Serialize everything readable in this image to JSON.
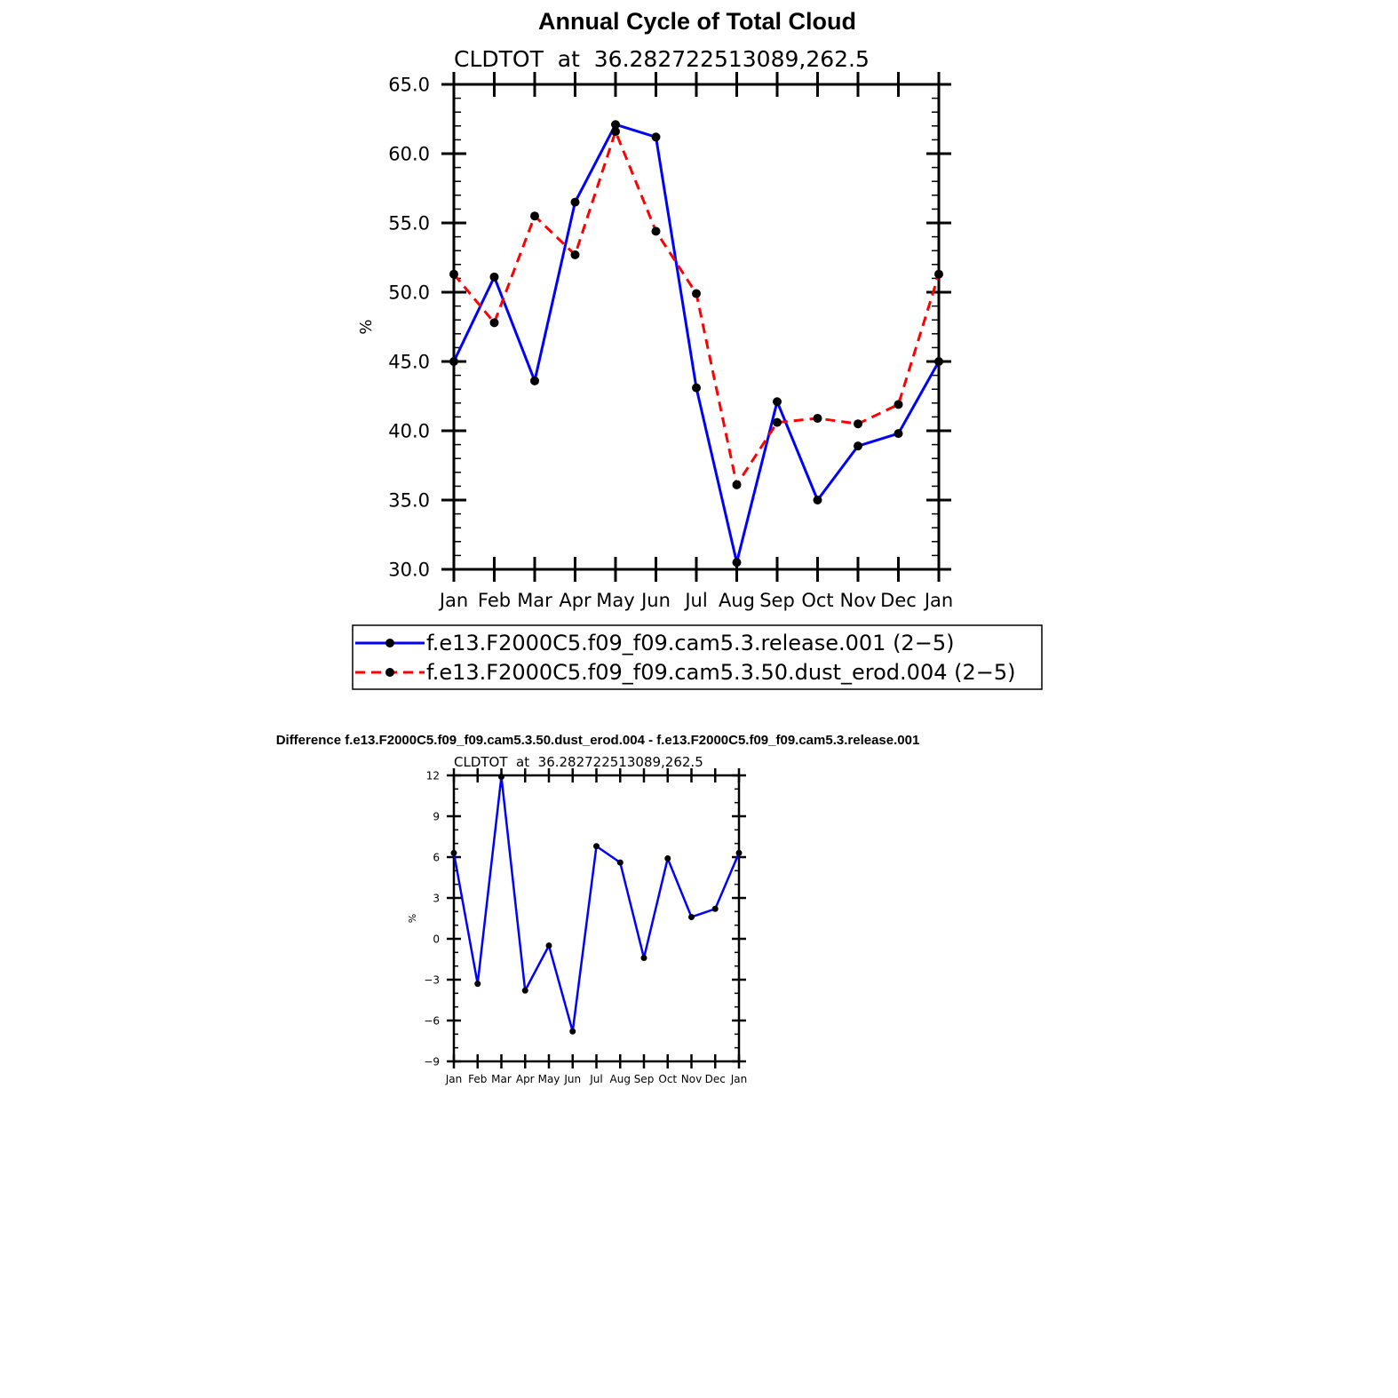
{
  "chart_data": [
    {
      "type": "line",
      "title": "Annual Cycle of Total Cloud",
      "subtitle": "CLDTOT  at  36.282722513089,262.5",
      "xlabel": "",
      "ylabel": "%",
      "categories": [
        "Jan",
        "Feb",
        "Mar",
        "Apr",
        "May",
        "Jun",
        "Jul",
        "Aug",
        "Sep",
        "Oct",
        "Nov",
        "Dec",
        "Jan"
      ],
      "ylim": [
        30,
        65
      ],
      "yticks": [
        "30.0",
        "35.0",
        "40.0",
        "45.0",
        "50.0",
        "55.0",
        "60.0",
        "65.0"
      ],
      "legend_position": "bottom",
      "series": [
        {
          "name": "f.e13.F2000C5.f09_f09.cam5.3.release.001 (2−5)",
          "color": "#0000ff",
          "dash": "solid",
          "values": [
            45.0,
            51.1,
            43.6,
            56.5,
            62.1,
            61.2,
            43.1,
            30.5,
            42.1,
            35.0,
            38.9,
            39.8,
            45.0
          ]
        },
        {
          "name": "f.e13.F2000C5.f09_f09.cam5.3.50.dust_erod.004 (2−5)",
          "color": "#ff0000",
          "dash": "dashed",
          "values": [
            51.3,
            47.8,
            55.5,
            52.7,
            61.6,
            54.4,
            49.9,
            36.1,
            40.6,
            40.9,
            40.5,
            41.9,
            51.3
          ]
        }
      ]
    },
    {
      "type": "line",
      "title": "Difference f.e13.F2000C5.f09_f09.cam5.3.50.dust_erod.004 - f.e13.F2000C5.f09_f09.cam5.3.release.001",
      "subtitle": "CLDTOT  at  36.282722513089,262.5",
      "xlabel": "",
      "ylabel": "%",
      "categories": [
        "Jan",
        "Feb",
        "Mar",
        "Apr",
        "May",
        "Jun",
        "Jul",
        "Aug",
        "Sep",
        "Oct",
        "Nov",
        "Dec",
        "Jan"
      ],
      "ylim": [
        -9,
        12
      ],
      "yticks": [
        "−9",
        "−6",
        "−3",
        "0",
        "3",
        "6",
        "9",
        "12"
      ],
      "series": [
        {
          "color": "#0000ff",
          "dash": "solid",
          "values": [
            6.3,
            -3.3,
            11.9,
            -3.8,
            -0.5,
            -6.8,
            6.8,
            5.6,
            -1.4,
            5.9,
            1.6,
            2.2,
            6.3
          ]
        }
      ]
    }
  ]
}
